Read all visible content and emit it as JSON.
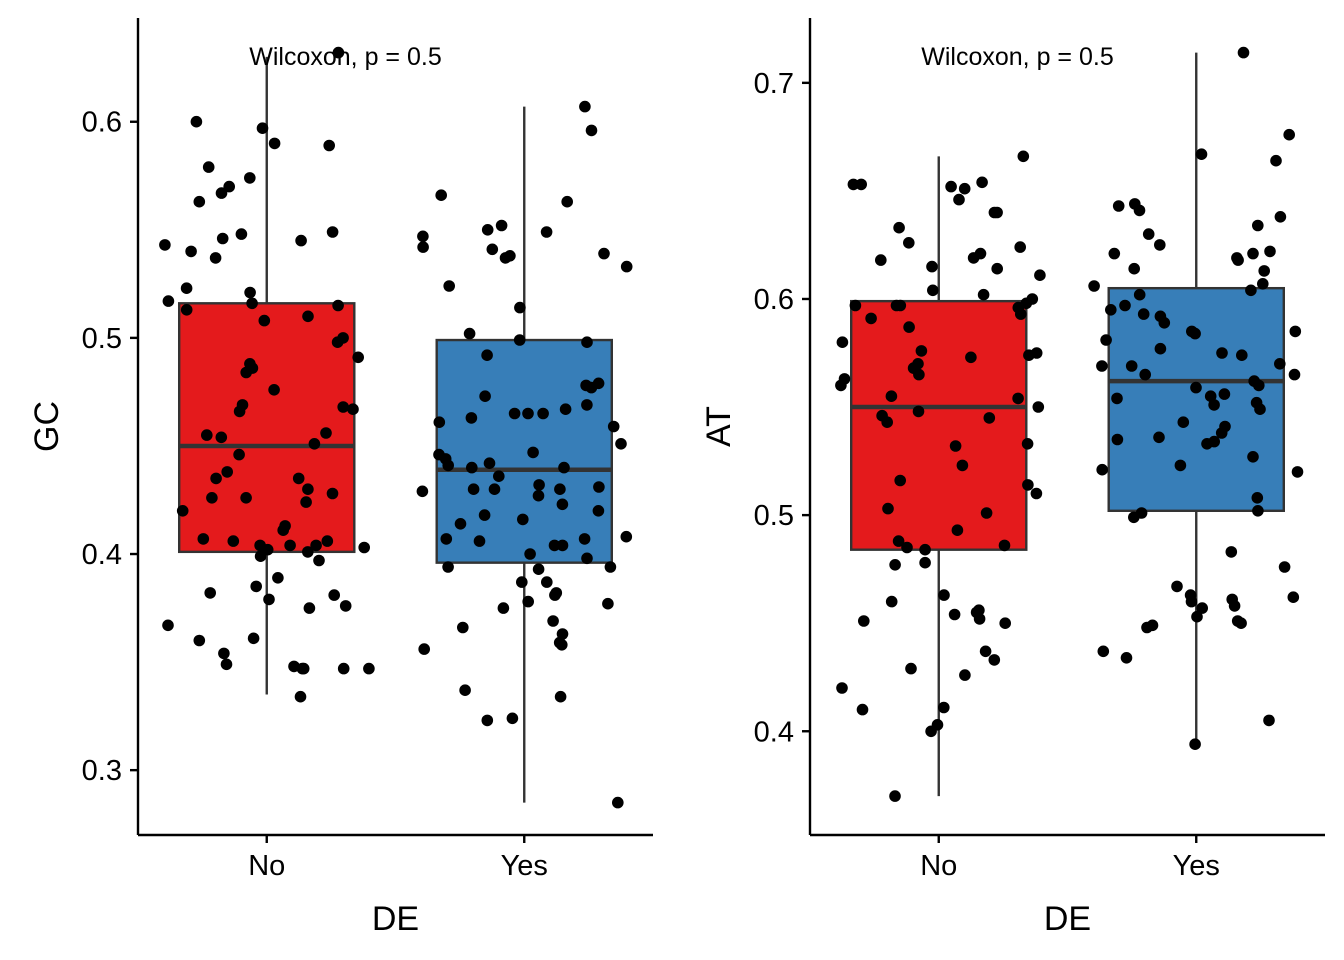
{
  "chart_data": [
    {
      "type": "boxplot",
      "title": "",
      "xlabel": "DE",
      "ylabel": "GC",
      "categories": [
        "No",
        "Yes"
      ],
      "ylim": [
        0.27,
        0.648
      ],
      "yticks": [
        0.3,
        0.4,
        0.5,
        0.6
      ],
      "ytick_labels": [
        "0.3",
        "0.4",
        "0.5",
        "0.6"
      ],
      "annotation": "Wilcoxon, p = 0.5",
      "colors": {
        "No": "#E41A1C",
        "Yes": "#377EB8"
      },
      "boxes": [
        {
          "category": "No",
          "whisker_low": 0.335,
          "q1": 0.401,
          "median": 0.45,
          "q3": 0.516,
          "whisker_high": 0.63
        },
        {
          "category": "Yes",
          "whisker_low": 0.285,
          "q1": 0.396,
          "median": 0.439,
          "q3": 0.499,
          "whisker_high": 0.607
        }
      ],
      "points": {
        "No": [
          0.435,
          0.349,
          0.348,
          0.347,
          0.347,
          0.347,
          0.36,
          0.376,
          0.375,
          0.381,
          0.404,
          0.406,
          0.406,
          0.407,
          0.411,
          0.426,
          0.455,
          0.456,
          0.468,
          0.498,
          0.513,
          0.399,
          0.451,
          0.446,
          0.454,
          0.466,
          0.467,
          0.5,
          0.521,
          0.516,
          0.549,
          0.563,
          0.6,
          0.57,
          0.548,
          0.402,
          0.403,
          0.404,
          0.397,
          0.382,
          0.361,
          0.347,
          0.428,
          0.438,
          0.476,
          0.515,
          0.51,
          0.523,
          0.413,
          0.42,
          0.424,
          0.426,
          0.43,
          0.435,
          0.469,
          0.484,
          0.488,
          0.491,
          0.486,
          0.517,
          0.537,
          0.54,
          0.545,
          0.543,
          0.546,
          0.567,
          0.574,
          0.579,
          0.589,
          0.597,
          0.59,
          0.632,
          0.404,
          0.401,
          0.367,
          0.389,
          0.385,
          0.379,
          0.334,
          0.354,
          0.508
        ],
        "Yes": [
          0.285,
          0.366,
          0.378,
          0.377,
          0.387,
          0.356,
          0.369,
          0.381,
          0.375,
          0.398,
          0.404,
          0.406,
          0.407,
          0.408,
          0.416,
          0.414,
          0.427,
          0.43,
          0.431,
          0.432,
          0.44,
          0.446,
          0.459,
          0.461,
          0.463,
          0.465,
          0.469,
          0.473,
          0.479,
          0.502,
          0.498,
          0.537,
          0.538,
          0.542,
          0.55,
          0.563,
          0.596,
          0.607,
          0.533,
          0.465,
          0.42,
          0.418,
          0.429,
          0.43,
          0.4,
          0.404,
          0.363,
          0.359,
          0.387,
          0.382,
          0.394,
          0.358,
          0.394,
          0.393,
          0.337,
          0.334,
          0.324,
          0.323,
          0.423,
          0.43,
          0.436,
          0.44,
          0.442,
          0.444,
          0.447,
          0.451,
          0.467,
          0.465,
          0.477,
          0.478,
          0.492,
          0.499,
          0.514,
          0.524,
          0.539,
          0.541,
          0.547,
          0.549,
          0.552,
          0.566,
          0.441,
          0.407
        ]
      }
    },
    {
      "type": "boxplot",
      "title": "",
      "xlabel": "DE",
      "ylabel": "AT",
      "categories": [
        "No",
        "Yes"
      ],
      "ylim": [
        0.352,
        0.73
      ],
      "yticks": [
        0.4,
        0.5,
        0.6,
        0.7
      ],
      "ytick_labels": [
        "0.4",
        "0.5",
        "0.6",
        "0.7"
      ],
      "annotation": "Wilcoxon, p = 0.5",
      "colors": {
        "No": "#E41A1C",
        "Yes": "#377EB8"
      },
      "boxes": [
        {
          "category": "No",
          "whisker_low": 0.37,
          "q1": 0.484,
          "median": 0.55,
          "q3": 0.599,
          "whisker_high": 0.666
        },
        {
          "category": "Yes",
          "whisker_low": 0.393,
          "q1": 0.502,
          "median": 0.562,
          "q3": 0.605,
          "whisker_high": 0.714
        }
      ],
      "points": {
        "No": [
          0.653,
          0.64,
          0.654,
          0.621,
          0.626,
          0.618,
          0.604,
          0.598,
          0.597,
          0.597,
          0.596,
          0.587,
          0.55,
          0.546,
          0.543,
          0.532,
          0.51,
          0.503,
          0.501,
          0.488,
          0.486,
          0.37,
          0.411,
          0.437,
          0.463,
          0.456,
          0.455,
          0.46,
          0.451,
          0.433,
          0.42,
          0.41,
          0.403,
          0.4,
          0.429,
          0.452,
          0.426,
          0.454,
          0.485,
          0.484,
          0.478,
          0.493,
          0.516,
          0.514,
          0.533,
          0.523,
          0.548,
          0.554,
          0.555,
          0.563,
          0.565,
          0.57,
          0.574,
          0.575,
          0.58,
          0.576,
          0.568,
          0.591,
          0.593,
          0.597,
          0.6,
          0.602,
          0.611,
          0.614,
          0.615,
          0.619,
          0.624,
          0.633,
          0.64,
          0.646,
          0.651,
          0.652,
          0.653,
          0.666,
          0.545,
          0.56,
          0.573,
          0.477,
          0.45
        ],
        "Yes": [
          0.714,
          0.676,
          0.667,
          0.664,
          0.644,
          0.643,
          0.641,
          0.638,
          0.634,
          0.63,
          0.625,
          0.622,
          0.621,
          0.619,
          0.618,
          0.614,
          0.613,
          0.607,
          0.604,
          0.602,
          0.597,
          0.595,
          0.593,
          0.589,
          0.585,
          0.584,
          0.581,
          0.577,
          0.575,
          0.57,
          0.569,
          0.569,
          0.565,
          0.562,
          0.559,
          0.556,
          0.555,
          0.554,
          0.549,
          0.543,
          0.541,
          0.538,
          0.536,
          0.535,
          0.534,
          0.533,
          0.527,
          0.523,
          0.521,
          0.52,
          0.508,
          0.502,
          0.501,
          0.499,
          0.483,
          0.476,
          0.467,
          0.463,
          0.462,
          0.461,
          0.46,
          0.458,
          0.457,
          0.453,
          0.451,
          0.45,
          0.449,
          0.448,
          0.437,
          0.434,
          0.405,
          0.394,
          0.592,
          0.606,
          0.621,
          0.585,
          0.56,
          0.551,
          0.565,
          0.552,
          0.574
        ]
      }
    }
  ]
}
